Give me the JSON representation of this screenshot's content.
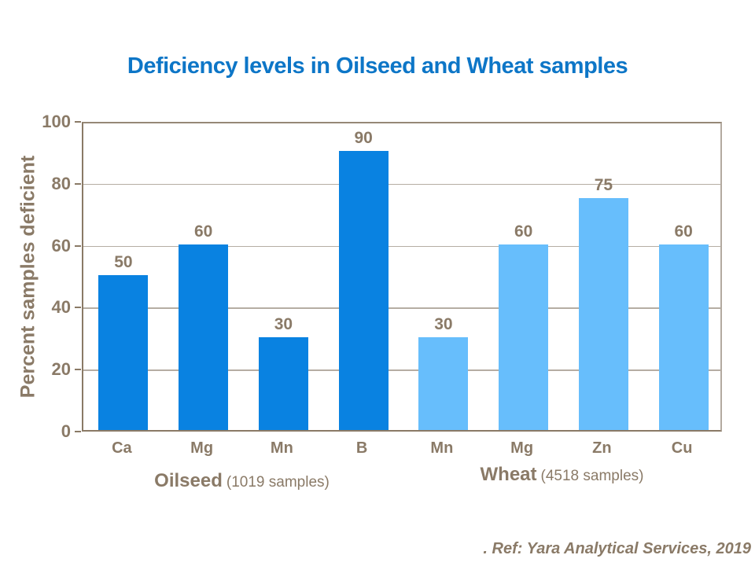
{
  "slide": {
    "title": "Deficiency levels in Oilseed and Wheat samples"
  },
  "footer": {
    "ref": ". Ref: Yara Analytical Services, 2019"
  },
  "colors": {
    "title": "#0d76c7",
    "axis_text": "#8a7a67",
    "gridline": "#b5ada3",
    "axis_line": "#8a7a66",
    "oilseed_bar": "#0982e1",
    "wheat_bar": "#67befc"
  },
  "chart_data": {
    "type": "bar",
    "title": "Deficiency levels in Oilseed and Wheat samples",
    "xlabel": "",
    "ylabel": "Percent samples deficient",
    "ylim": [
      0,
      100
    ],
    "yticks": [
      0,
      20,
      40,
      60,
      80,
      100
    ],
    "grid": "horizontal",
    "legend": "none",
    "data_labels": "above bars",
    "groups": [
      {
        "name": "Oilseed",
        "caption_suffix": "(1019 samples)",
        "color": "#0982e1",
        "categories": [
          "Ca",
          "Mg",
          "Mn",
          "B"
        ],
        "values": [
          50,
          60,
          30,
          90
        ]
      },
      {
        "name": "Wheat",
        "caption_suffix": "(4518 samples)",
        "color": "#67befc",
        "categories": [
          "Mn",
          "Mg",
          "Zn",
          "Cu"
        ],
        "values": [
          30,
          60,
          75,
          60
        ]
      }
    ]
  }
}
